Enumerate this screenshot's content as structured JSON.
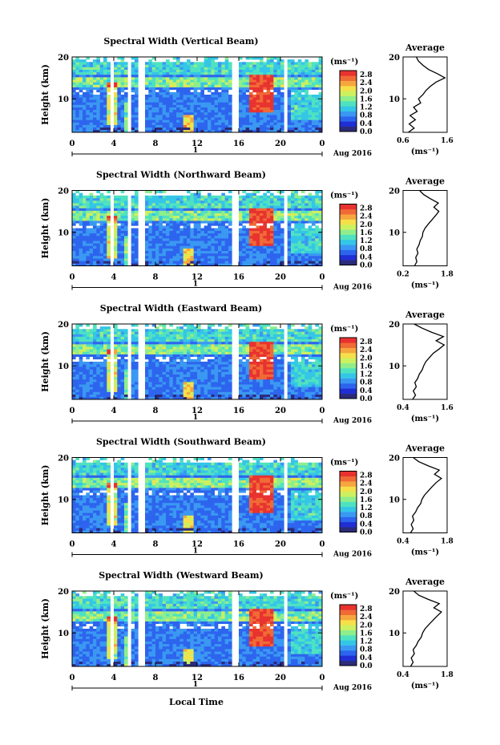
{
  "figure": {
    "xlabel": "Local Time",
    "date_label": "Aug 2016",
    "day_marker": "1",
    "cbar_unit": "(ms⁻¹)",
    "avg_title": "Average",
    "avg_unit": "(ms⁻¹)"
  },
  "colormap": [
    "#2b2b7a",
    "#1f2fd4",
    "#2d64ee",
    "#3a98f2",
    "#34c6e6",
    "#4fe2c0",
    "#8fee8c",
    "#cdf060",
    "#f5e04a",
    "#f6a63e",
    "#f06a36",
    "#e8322f"
  ],
  "chart_data": [
    {
      "type": "heatmap",
      "title": "Spectral Width (Vertical Beam)",
      "ylabel": "Height (km)",
      "x_ticks": [
        "0",
        "4",
        "8",
        "12",
        "16",
        "20",
        "0"
      ],
      "xlim": [
        0,
        24
      ],
      "y_ticks": [
        "20",
        "10"
      ],
      "ylim": [
        2,
        20
      ],
      "colorbar_ticks": [
        "2.8",
        "2.4",
        "2.0",
        "1.6",
        "1.2",
        "0.8",
        "0.4",
        "0.0"
      ],
      "colorbar_range": [
        0,
        3.0
      ],
      "profile": {
        "title": "Average",
        "x_ticks": [
          "0.6",
          "1.6"
        ],
        "xlim": [
          0.6,
          1.6
        ],
        "height": [
          2,
          3,
          4,
          5,
          6,
          7,
          8,
          9,
          10,
          11,
          12,
          13,
          14,
          15,
          16,
          17,
          18,
          19,
          20
        ],
        "values": [
          0.72,
          0.85,
          0.74,
          0.88,
          0.76,
          0.92,
          0.84,
          1.0,
          0.95,
          1.05,
          1.12,
          1.22,
          1.35,
          1.55,
          1.38,
          1.18,
          1.05,
          0.95,
          0.9
        ]
      }
    },
    {
      "type": "heatmap",
      "title": "Spectral Width (Northward Beam)",
      "ylabel": "Height (km)",
      "x_ticks": [
        "0",
        "4",
        "8",
        "12",
        "16",
        "20",
        "0"
      ],
      "xlim": [
        0,
        24
      ],
      "y_ticks": [
        "20",
        "10"
      ],
      "ylim": [
        2,
        20
      ],
      "colorbar_ticks": [
        "2.8",
        "2.4",
        "2.0",
        "1.6",
        "1.2",
        "0.8",
        "0.4",
        "0.0"
      ],
      "colorbar_range": [
        0,
        3.0
      ],
      "profile": {
        "title": "Average",
        "x_ticks": [
          "0.2",
          "1.8"
        ],
        "xlim": [
          0.2,
          1.8
        ],
        "height": [
          2,
          3,
          4,
          5,
          6,
          7,
          8,
          9,
          10,
          11,
          12,
          13,
          14,
          15,
          16,
          17,
          18,
          19,
          20
        ],
        "values": [
          0.62,
          0.7,
          0.66,
          0.74,
          0.7,
          0.78,
          0.82,
          0.9,
          0.92,
          1.0,
          1.12,
          1.25,
          1.38,
          1.5,
          1.32,
          1.48,
          1.2,
          0.95,
          0.8
        ]
      }
    },
    {
      "type": "heatmap",
      "title": "Spectral Width (Eastward Beam)",
      "ylabel": "Height (km)",
      "x_ticks": [
        "0",
        "4",
        "8",
        "12",
        "16",
        "20",
        "0"
      ],
      "xlim": [
        0,
        24
      ],
      "y_ticks": [
        "20",
        "10"
      ],
      "ylim": [
        2,
        20
      ],
      "colorbar_ticks": [
        "2.8",
        "2.4",
        "2.0",
        "1.6",
        "1.2",
        "0.8",
        "0.4",
        "0.0"
      ],
      "colorbar_range": [
        0,
        3.0
      ],
      "profile": {
        "title": "Average",
        "x_ticks": [
          "0.4",
          "1.6"
        ],
        "xlim": [
          0.4,
          1.6
        ],
        "height": [
          2,
          3,
          4,
          5,
          6,
          7,
          8,
          9,
          10,
          11,
          12,
          13,
          14,
          15,
          16,
          17,
          18,
          19,
          20
        ],
        "values": [
          0.66,
          0.74,
          0.68,
          0.76,
          0.72,
          0.8,
          0.84,
          0.92,
          0.96,
          1.02,
          1.12,
          1.22,
          1.38,
          1.52,
          1.3,
          1.5,
          1.18,
          0.92,
          0.7
        ]
      }
    },
    {
      "type": "heatmap",
      "title": "Spectral Width (Southward Beam)",
      "ylabel": "Height (km)",
      "x_ticks": [
        "0",
        "4",
        "8",
        "12",
        "16",
        "20",
        "0"
      ],
      "xlim": [
        0,
        24
      ],
      "y_ticks": [
        "20",
        "10"
      ],
      "ylim": [
        2,
        20
      ],
      "colorbar_ticks": [
        "2.8",
        "2.4",
        "2.0",
        "1.6",
        "1.2",
        "0.8",
        "0.4",
        "0.0"
      ],
      "colorbar_range": [
        0,
        3.0
      ],
      "profile": {
        "title": "Average",
        "x_ticks": [
          "0.4",
          "1.8"
        ],
        "xlim": [
          0.4,
          1.8
        ],
        "height": [
          2,
          3,
          4,
          5,
          6,
          7,
          8,
          9,
          10,
          11,
          12,
          13,
          14,
          15,
          16,
          17,
          18,
          19,
          20
        ],
        "values": [
          0.64,
          0.72,
          0.66,
          0.74,
          0.7,
          0.8,
          0.86,
          0.96,
          1.0,
          1.08,
          1.2,
          1.32,
          1.45,
          1.62,
          1.4,
          1.55,
          1.2,
          0.9,
          0.72
        ]
      }
    },
    {
      "type": "heatmap",
      "title": "Spectral Width (Westward Beam)",
      "ylabel": "Height (km)",
      "x_ticks": [
        "0",
        "4",
        "8",
        "12",
        "16",
        "20",
        "0"
      ],
      "xlim": [
        0,
        24
      ],
      "y_ticks": [
        "20",
        "10"
      ],
      "ylim": [
        2,
        20
      ],
      "colorbar_ticks": [
        "2.8",
        "2.4",
        "2.0",
        "1.6",
        "1.2",
        "0.8",
        "0.4",
        "0.0"
      ],
      "colorbar_range": [
        0,
        3.0
      ],
      "profile": {
        "title": "Average",
        "x_ticks": [
          "0.4",
          "1.8"
        ],
        "xlim": [
          0.4,
          1.8
        ],
        "height": [
          2,
          3,
          4,
          5,
          6,
          7,
          8,
          9,
          10,
          11,
          12,
          13,
          14,
          15,
          16,
          17,
          18,
          19,
          20
        ],
        "values": [
          0.64,
          0.72,
          0.66,
          0.76,
          0.72,
          0.82,
          0.88,
          0.98,
          1.02,
          1.1,
          1.22,
          1.35,
          1.48,
          1.62,
          1.38,
          1.55,
          1.2,
          0.9,
          0.74
        ]
      }
    }
  ]
}
